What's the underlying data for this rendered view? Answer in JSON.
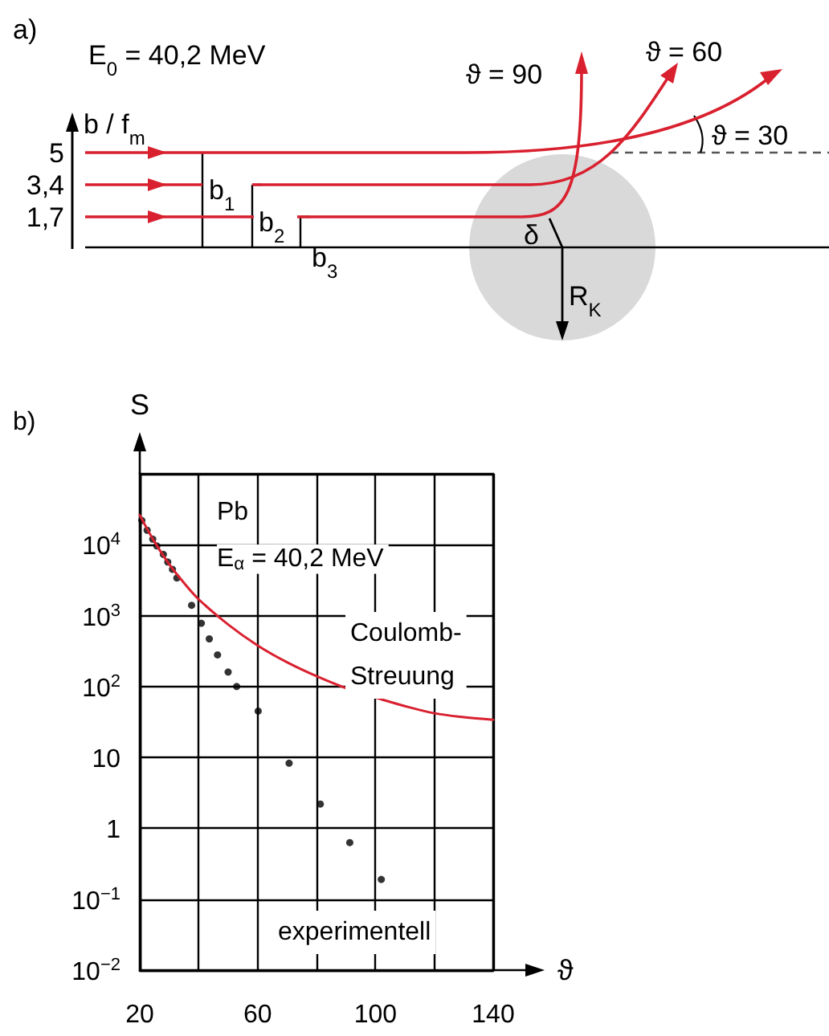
{
  "chart_data": [
    {
      "type": "other",
      "annotations": [
        "a)",
        "E$_{0}$ = 40,2 MeV",
        "b / f$_{m}$",
        "5",
        "3,4",
        "1,7",
        "b$_{1}$",
        "b$_{2}$",
        "b$_{3}$",
        "ϑ = 90",
        "ϑ = 60",
        "ϑ = 30",
        "δ",
        "R$_{K}$"
      ]
    },
    {
      "type": "scatter",
      "xlabel": "ϑ",
      "ylabel": "S",
      "annotations": [
        "b)",
        "Pb",
        "E$_{α}$ = 40,2 MeV"
      ],
      "series": [
        {
          "name": "experimentell",
          "type": "scatter",
          "marker": "circle",
          "color": "#000000",
          "x": [
            20.7,
            22.5,
            24.4,
            25.8,
            28,
            29.5,
            31.1,
            32.6,
            37.6,
            40.9,
            43.6,
            46.4,
            50,
            52.9,
            60.2,
            70.7,
            81.3,
            91.3,
            102
          ],
          "values": [
            22000,
            16000,
            12000,
            9600,
            7300,
            5700,
            4500,
            3400,
            1400,
            780,
            470,
            280,
            160,
            100,
            45,
            8.3,
            2.2,
            0.63,
            0.19
          ]
        },
        {
          "name": "Coulomb-\nStreuung",
          "type": "line",
          "marker": "none",
          "color": "#d9202f",
          "x": [
            20,
            25,
            30,
            35,
            40,
            50,
            60,
            70,
            80,
            90,
            100,
            110,
            120,
            130,
            140
          ],
          "values": [
            26000,
            11000,
            5300,
            2900,
            1700,
            750,
            380,
            220,
            140,
            95,
            70,
            53,
            42,
            37,
            34
          ]
        }
      ],
      "xlim": [
        20,
        140
      ],
      "xticks": [
        20,
        {
          "value": 40,
          "label": null
        },
        60,
        {
          "value": 80,
          "label": null
        },
        100,
        {
          "value": 120,
          "label": null
        },
        140
      ],
      "ylim": [
        0.01,
        100000
      ],
      "yticks": [
        {
          "value": 0.01,
          "label": "10$^{−2}$"
        },
        {
          "value": 0.1,
          "label": "10$^{−1}$"
        },
        1,
        10,
        {
          "value": 100,
          "label": "10$^{2}$"
        },
        {
          "value": 1000,
          "label": "10$^{3}$"
        },
        {
          "value": 10000,
          "label": "10$^{4}$"
        },
        {
          "value": 100000,
          "label": null
        }
      ],
      "log": "y",
      "grid": true,
      "legend": false
    }
  ]
}
